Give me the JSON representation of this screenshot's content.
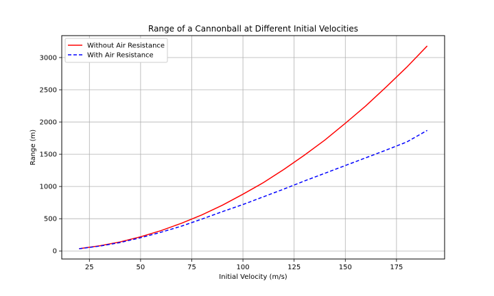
{
  "chart_data": {
    "type": "line",
    "title": "Range of a Cannonball at Different Initial Velocities",
    "xlabel": "Initial Velocity (m/s)",
    "ylabel": "Range (m)",
    "xlim": [
      11.5,
      198.5
    ],
    "ylim": [
      -125,
      3340
    ],
    "xticks": [
      25,
      50,
      75,
      100,
      125,
      150,
      175
    ],
    "yticks": [
      0,
      500,
      1000,
      1500,
      2000,
      2500,
      3000
    ],
    "grid": true,
    "legend_position": "top-left",
    "x": [
      20,
      30,
      40,
      50,
      60,
      70,
      80,
      90,
      100,
      110,
      120,
      130,
      140,
      150,
      160,
      170,
      180,
      190
    ],
    "series": [
      {
        "name": "Without Air Resistance",
        "color": "#ff0000",
        "style": "solid",
        "values": [
          35,
          80,
          140,
          220,
          315,
          430,
          560,
          710,
          880,
          1060,
          1265,
          1485,
          1720,
          1980,
          2250,
          2545,
          2850,
          3180
        ]
      },
      {
        "name": "With Air Resistance",
        "color": "#0000ff",
        "style": "dashed",
        "values": [
          35,
          75,
          130,
          205,
          290,
          385,
          495,
          610,
          720,
          840,
          960,
          1085,
          1205,
          1325,
          1445,
          1565,
          1690,
          1870
        ]
      }
    ]
  }
}
